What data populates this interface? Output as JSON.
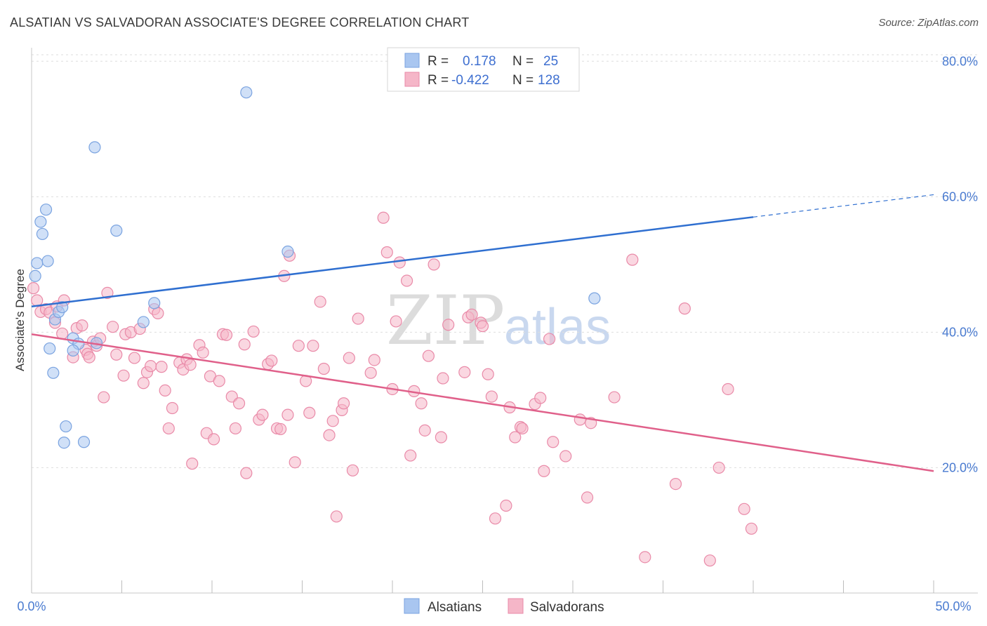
{
  "header": {
    "title": "ALSATIAN VS SALVADORAN ASSOCIATE'S DEGREE CORRELATION CHART",
    "source": "Source: ZipAtlas.com"
  },
  "watermark": {
    "zip": "ZIP",
    "atlas": "atlas"
  },
  "legend_top": {
    "rows": [
      {
        "r_label": "R =",
        "r_value": "0.178",
        "n_label": "N =",
        "n_value": "25",
        "color": "#a9c6f0"
      },
      {
        "r_label": "R =",
        "r_value": "-0.422",
        "n_label": "N =",
        "n_value": "128",
        "color": "#f5b6c8"
      }
    ]
  },
  "legend_bottom": {
    "items": [
      "Alsatians",
      "Salvadorans"
    ]
  },
  "chart_data": {
    "type": "scatter",
    "title": "ALSATIAN VS SALVADORAN ASSOCIATE'S DEGREE CORRELATION CHART",
    "xlabel": "",
    "ylabel": "Associate's Degree",
    "xlim": [
      0,
      50
    ],
    "ylim": [
      1.5,
      82
    ],
    "x_tick_labels": [
      "0.0%",
      "50.0%"
    ],
    "y_ticks": [
      20,
      40,
      60,
      80
    ],
    "y_tick_labels": [
      "20.0%",
      "40.0%",
      "60.0%",
      "80.0%"
    ],
    "grid": true,
    "legend_position": "top-center",
    "series": [
      {
        "name": "Alsatians",
        "color": "#a9c6f0",
        "stroke": "#7aa3e0",
        "trend": {
          "x0": 0,
          "y0": 43.8,
          "x1": 40,
          "y1": 57.0,
          "dashed_to_x": 50,
          "dashed_to_y": 60.3,
          "color": "#2f6fd0"
        },
        "points": [
          [
            0.2,
            48.3
          ],
          [
            0.5,
            56.3
          ],
          [
            0.6,
            54.5
          ],
          [
            0.8,
            58.1
          ],
          [
            0.9,
            50.5
          ],
          [
            0.3,
            50.2
          ],
          [
            1.0,
            37.6
          ],
          [
            1.2,
            34.0
          ],
          [
            1.3,
            41.9
          ],
          [
            1.5,
            43.0
          ],
          [
            1.7,
            43.7
          ],
          [
            1.9,
            26.1
          ],
          [
            1.8,
            23.7
          ],
          [
            2.3,
            39.1
          ],
          [
            2.6,
            38.3
          ],
          [
            2.3,
            37.3
          ],
          [
            2.9,
            23.8
          ],
          [
            3.6,
            38.4
          ],
          [
            3.5,
            67.3
          ],
          [
            4.7,
            55.0
          ],
          [
            6.2,
            41.5
          ],
          [
            6.8,
            44.3
          ],
          [
            11.9,
            75.4
          ],
          [
            14.2,
            51.9
          ],
          [
            31.2,
            45.0
          ]
        ]
      },
      {
        "name": "Salvadorans",
        "color": "#f5b6c8",
        "stroke": "#e98aa8",
        "trend": {
          "x0": 0,
          "y0": 39.7,
          "x1": 50,
          "y1": 19.5,
          "color": "#e0608a"
        },
        "points": [
          [
            0.1,
            46.5
          ],
          [
            0.3,
            44.7
          ],
          [
            0.5,
            43.0
          ],
          [
            0.8,
            43.4
          ],
          [
            1.0,
            42.9
          ],
          [
            1.3,
            41.4
          ],
          [
            1.4,
            43.8
          ],
          [
            1.7,
            39.8
          ],
          [
            1.8,
            44.7
          ],
          [
            2.3,
            36.3
          ],
          [
            2.5,
            40.6
          ],
          [
            2.8,
            41.0
          ],
          [
            3.0,
            37.4
          ],
          [
            3.1,
            36.8
          ],
          [
            3.2,
            36.3
          ],
          [
            3.4,
            38.6
          ],
          [
            3.6,
            38.0
          ],
          [
            3.8,
            39.1
          ],
          [
            4.0,
            30.4
          ],
          [
            4.2,
            45.8
          ],
          [
            4.5,
            40.8
          ],
          [
            4.7,
            36.7
          ],
          [
            5.1,
            33.6
          ],
          [
            5.2,
            39.7
          ],
          [
            5.5,
            40.0
          ],
          [
            5.7,
            36.2
          ],
          [
            6.0,
            40.5
          ],
          [
            6.2,
            32.5
          ],
          [
            6.4,
            34.1
          ],
          [
            6.6,
            35.0
          ],
          [
            6.8,
            43.4
          ],
          [
            7.0,
            42.8
          ],
          [
            7.2,
            34.9
          ],
          [
            7.4,
            31.4
          ],
          [
            7.6,
            25.8
          ],
          [
            7.8,
            28.8
          ],
          [
            8.2,
            35.5
          ],
          [
            8.4,
            34.5
          ],
          [
            8.6,
            36.0
          ],
          [
            8.8,
            35.2
          ],
          [
            8.9,
            20.6
          ],
          [
            9.3,
            38.1
          ],
          [
            9.5,
            37.0
          ],
          [
            9.7,
            25.1
          ],
          [
            9.9,
            33.5
          ],
          [
            10.1,
            24.2
          ],
          [
            10.4,
            32.8
          ],
          [
            10.6,
            39.7
          ],
          [
            10.8,
            39.6
          ],
          [
            11.1,
            30.5
          ],
          [
            11.3,
            25.8
          ],
          [
            11.5,
            29.5
          ],
          [
            11.8,
            38.2
          ],
          [
            11.9,
            19.2
          ],
          [
            12.3,
            40.1
          ],
          [
            12.6,
            27.1
          ],
          [
            12.8,
            27.8
          ],
          [
            13.1,
            35.3
          ],
          [
            13.3,
            35.8
          ],
          [
            13.6,
            25.8
          ],
          [
            13.8,
            25.7
          ],
          [
            14.0,
            48.3
          ],
          [
            14.2,
            27.8
          ],
          [
            14.3,
            51.3
          ],
          [
            14.6,
            20.8
          ],
          [
            14.8,
            38.0
          ],
          [
            15.2,
            32.8
          ],
          [
            15.4,
            28.1
          ],
          [
            15.6,
            38.0
          ],
          [
            16.0,
            44.5
          ],
          [
            16.2,
            34.6
          ],
          [
            16.5,
            24.8
          ],
          [
            16.7,
            26.9
          ],
          [
            16.9,
            12.8
          ],
          [
            17.2,
            28.5
          ],
          [
            17.3,
            29.5
          ],
          [
            17.6,
            36.2
          ],
          [
            17.8,
            19.6
          ],
          [
            18.1,
            42.0
          ],
          [
            18.8,
            34.0
          ],
          [
            19.0,
            35.9
          ],
          [
            19.5,
            56.9
          ],
          [
            19.7,
            51.8
          ],
          [
            20.0,
            31.6
          ],
          [
            20.2,
            41.6
          ],
          [
            20.4,
            50.3
          ],
          [
            20.8,
            47.6
          ],
          [
            21.0,
            21.8
          ],
          [
            21.2,
            31.3
          ],
          [
            21.6,
            29.5
          ],
          [
            21.8,
            25.5
          ],
          [
            22.0,
            36.5
          ],
          [
            22.3,
            50.0
          ],
          [
            22.7,
            24.5
          ],
          [
            22.8,
            33.2
          ],
          [
            23.1,
            41.1
          ],
          [
            24.0,
            34.1
          ],
          [
            24.2,
            42.2
          ],
          [
            24.4,
            42.6
          ],
          [
            24.9,
            41.4
          ],
          [
            25.0,
            40.9
          ],
          [
            25.3,
            33.8
          ],
          [
            25.5,
            30.5
          ],
          [
            25.7,
            12.5
          ],
          [
            26.3,
            14.4
          ],
          [
            26.5,
            28.9
          ],
          [
            26.8,
            24.5
          ],
          [
            27.1,
            26.0
          ],
          [
            27.2,
            25.8
          ],
          [
            27.9,
            29.4
          ],
          [
            28.2,
            30.3
          ],
          [
            28.4,
            19.5
          ],
          [
            28.7,
            39.0
          ],
          [
            28.9,
            23.8
          ],
          [
            29.6,
            21.7
          ],
          [
            30.4,
            27.1
          ],
          [
            30.8,
            15.6
          ],
          [
            31.0,
            26.6
          ],
          [
            32.3,
            30.4
          ],
          [
            33.3,
            50.7
          ],
          [
            34.0,
            6.8
          ],
          [
            35.7,
            17.6
          ],
          [
            36.2,
            43.5
          ],
          [
            37.6,
            6.3
          ],
          [
            38.1,
            20.0
          ],
          [
            38.6,
            31.6
          ],
          [
            39.5,
            13.9
          ],
          [
            39.9,
            11.0
          ]
        ]
      }
    ]
  }
}
